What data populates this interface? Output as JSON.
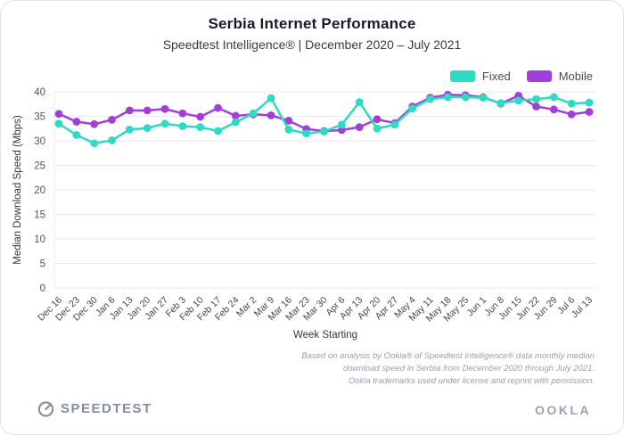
{
  "header": {
    "title": "Serbia Internet Performance",
    "subtitle": "Speedtest Intelligence® | December 2020 – July 2021"
  },
  "legend": [
    {
      "label": "Fixed",
      "color": "#2edac2"
    },
    {
      "label": "Mobile",
      "color": "#a23fd9"
    }
  ],
  "chart_data": {
    "type": "line",
    "categories": [
      "Dec 16",
      "Dec 23",
      "Dec 30",
      "Jan 6",
      "Jan 13",
      "Jan 20",
      "Jan 27",
      "Feb 3",
      "Feb 10",
      "Feb 17",
      "Feb 24",
      "Mar 2",
      "Mar 9",
      "Mar 16",
      "Mar 23",
      "Mar 30",
      "Apr 6",
      "Apr 13",
      "Apr 20",
      "Apr 27",
      "May 4",
      "May 11",
      "May 18",
      "May 25",
      "Jun 1",
      "Jun 8",
      "Jun 15",
      "Jun 22",
      "Jun 29",
      "Jul 6",
      "Jul 13"
    ],
    "series": [
      {
        "name": "Fixed",
        "color": "#2edac2",
        "values": [
          33.5,
          31.2,
          29.5,
          30.1,
          32.3,
          32.6,
          33.5,
          33.0,
          32.8,
          32.0,
          33.8,
          35.6,
          38.7,
          32.3,
          31.5,
          31.9,
          33.3,
          37.9,
          32.5,
          33.3,
          36.6,
          38.5,
          38.9,
          38.9,
          38.8,
          37.7,
          38.2,
          38.5,
          38.9,
          37.6,
          37.8
        ]
      },
      {
        "name": "Mobile",
        "color": "#a23fd9",
        "values": [
          35.5,
          33.9,
          33.4,
          34.3,
          36.2,
          36.2,
          36.5,
          35.6,
          34.9,
          36.7,
          35.1,
          35.4,
          35.2,
          34.1,
          32.4,
          32.0,
          32.2,
          32.8,
          34.4,
          33.6,
          37.0,
          38.8,
          39.4,
          39.3,
          38.9,
          37.6,
          39.2,
          37.0,
          36.4,
          35.4,
          35.9
        ]
      }
    ],
    "title": "Serbia Internet Performance",
    "xlabel": "Week Starting",
    "ylabel": "Median Download Speed (Mbps)",
    "ylim": [
      0,
      40
    ],
    "ytick_step": 5,
    "grid": true,
    "legend_position": "top-right"
  },
  "footnote": {
    "lines": [
      "Based on analysis by Ookla® of Speedtest Intelligence® data monthly median",
      "download speed in Serbia from December 2020 through July 2021.",
      "Ookla trademarks used under license and reprint with permission."
    ]
  },
  "footer": {
    "speedtest_label": "SPEEDTEST",
    "ookla_label": "OOKLA"
  }
}
